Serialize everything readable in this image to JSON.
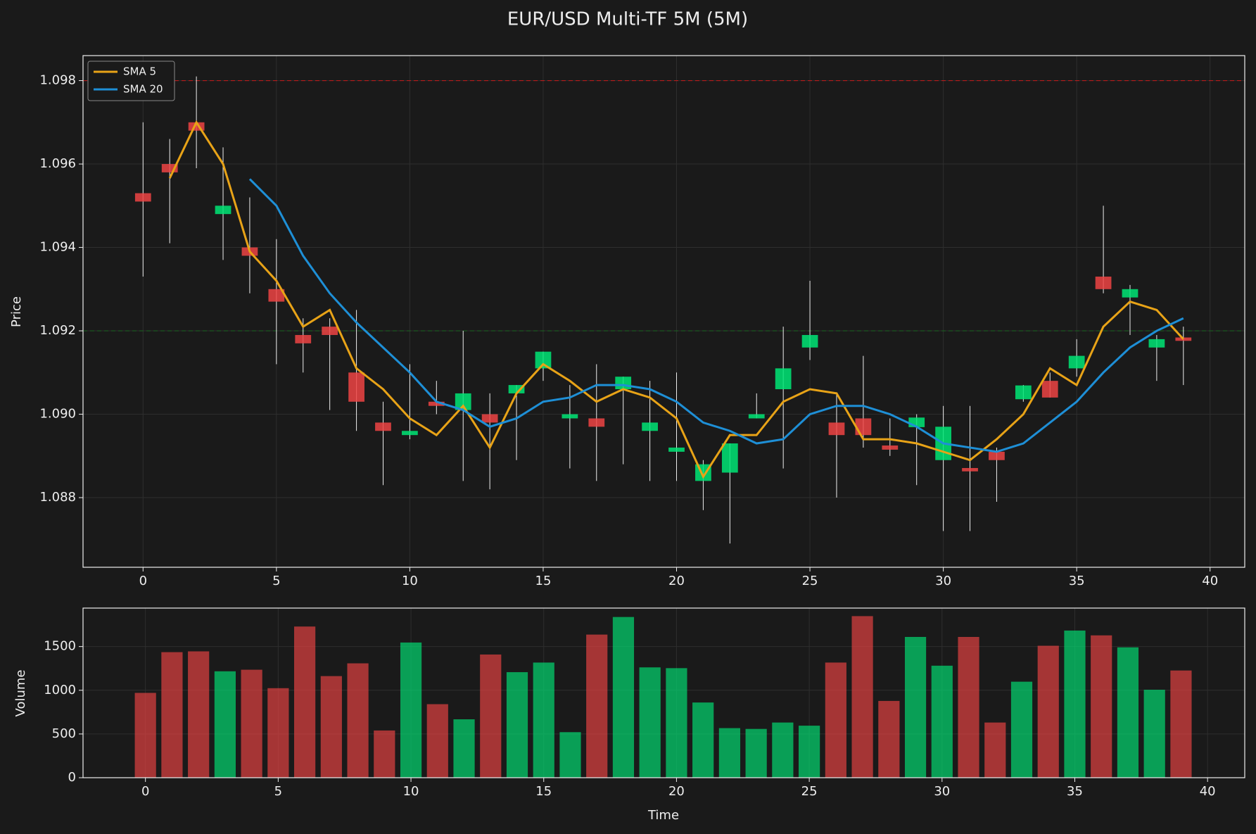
{
  "chart_data": [
    {
      "type": "candlestick",
      "title": "EUR/USD Multi-TF 5M (5M)",
      "ylabel": "Price",
      "x": [
        0,
        1,
        2,
        3,
        4,
        5,
        6,
        7,
        8,
        9,
        10,
        11,
        12,
        13,
        14,
        15,
        16,
        17,
        18,
        19,
        20,
        21,
        22,
        23,
        24,
        25,
        26,
        27,
        28,
        29,
        30,
        31,
        32,
        33,
        34,
        35,
        36,
        37,
        38,
        39
      ],
      "open": [
        1.0953,
        1.096,
        1.097,
        1.0948,
        1.094,
        1.093,
        1.0919,
        1.0921,
        1.091,
        1.0898,
        1.0895,
        1.0903,
        1.0901,
        1.09,
        1.0905,
        1.0911,
        1.0899,
        1.0899,
        1.0906,
        1.0896,
        1.0891,
        1.0884,
        1.0886,
        1.0899,
        1.0906,
        1.0916,
        1.0898,
        1.0899,
        1.08925,
        1.08969,
        1.0889,
        1.08871,
        1.0891,
        1.09036,
        1.0908,
        1.0911,
        1.0933,
        1.0928,
        1.0916,
        1.09184
      ],
      "high": [
        1.097,
        1.0966,
        1.0981,
        1.0964,
        1.0952,
        1.0942,
        1.0923,
        1.0923,
        1.0925,
        1.0903,
        1.0912,
        1.0908,
        1.092,
        1.0905,
        1.0907,
        1.0915,
        1.0907,
        1.0912,
        1.0909,
        1.0908,
        1.091,
        1.0889,
        1.0893,
        1.0905,
        1.0921,
        1.0932,
        1.0905,
        1.0914,
        1.0899,
        1.09,
        1.0902,
        1.0902,
        1.0892,
        1.0907,
        1.091,
        1.0918,
        1.095,
        1.0931,
        1.0919,
        1.0921
      ],
      "low": [
        1.0933,
        1.0941,
        1.0959,
        1.0937,
        1.0929,
        1.0912,
        1.091,
        1.0901,
        1.0896,
        1.0883,
        1.0894,
        1.09,
        1.0884,
        1.0882,
        1.0889,
        1.0908,
        1.0887,
        1.0884,
        1.0888,
        1.0884,
        1.0884,
        1.0877,
        1.0869,
        1.0899,
        1.0887,
        1.0913,
        1.088,
        1.0892,
        1.089,
        1.0883,
        1.0872,
        1.0872,
        1.0879,
        1.0903,
        1.0904,
        1.0909,
        1.0929,
        1.0919,
        1.0908,
        1.0907
      ],
      "close": [
        1.0951,
        1.0958,
        1.0968,
        1.095,
        1.0938,
        1.0927,
        1.0917,
        1.0919,
        1.0903,
        1.0896,
        1.0896,
        1.0902,
        1.0905,
        1.0898,
        1.0907,
        1.0915,
        1.09,
        1.0897,
        1.0909,
        1.0898,
        1.0892,
        1.0888,
        1.0893,
        1.09,
        1.0911,
        1.0919,
        1.0895,
        1.0895,
        1.08915,
        1.08992,
        1.0897,
        1.08863,
        1.0889,
        1.09069,
        1.0904,
        1.0914,
        1.093,
        1.093,
        1.0918,
        1.09176
      ],
      "up_color": "#00e676",
      "down_color": "#ef4444",
      "series": [
        {
          "name": "SMA 5",
          "color": "#e8a317",
          "values": [
            null,
            1.09566,
            1.097,
            1.096,
            1.0939,
            1.0932,
            1.0921,
            1.0925,
            1.0911,
            1.0906,
            1.0899,
            1.0895,
            1.0902,
            1.0892,
            1.0905,
            1.0912,
            1.0908,
            1.0903,
            1.0906,
            1.0904,
            1.0899,
            1.0885,
            1.0895,
            1.0895,
            1.0903,
            1.0906,
            1.0905,
            1.0894,
            1.0894,
            1.0893,
            1.0891,
            1.0889,
            1.0894,
            1.09,
            1.0911,
            1.0907,
            1.0921,
            1.0927,
            1.0925,
            1.0918
          ]
        },
        {
          "name": "SMA 20",
          "color": "#1e8fd6",
          "values": [
            null,
            null,
            null,
            null,
            1.09564,
            1.095,
            1.0938,
            1.0929,
            1.0922,
            1.0916,
            1.091,
            1.0903,
            1.0901,
            1.0897,
            1.0899,
            1.0903,
            1.0904,
            1.0907,
            1.0907,
            1.0906,
            1.0903,
            1.0898,
            1.0896,
            1.0893,
            1.0894,
            1.09,
            1.0902,
            1.0902,
            1.09,
            1.0897,
            1.0893,
            1.0892,
            1.0891,
            1.0893,
            1.0898,
            1.0903,
            1.091,
            1.0916,
            1.092,
            1.0923
          ]
        }
      ],
      "hlines": [
        {
          "value": 1.098,
          "color": "#b71c1c"
        },
        {
          "value": 1.092,
          "color": "#1b5e20"
        }
      ],
      "xlim": [
        -2.25,
        41.3
      ],
      "ylim": [
        1.08633,
        1.0986
      ],
      "xticks": [
        0,
        5,
        10,
        15,
        20,
        25,
        30,
        35,
        40
      ],
      "yticks": [
        1.088,
        {
          "value": 1.09,
          "label": "1.090"
        },
        1.092,
        1.094,
        1.096,
        1.098
      ],
      "grid": true,
      "legend": "upper-left"
    },
    {
      "type": "bar",
      "xlabel": "Time",
      "ylabel": "Volume",
      "x": [
        0,
        1,
        2,
        3,
        4,
        5,
        6,
        7,
        8,
        9,
        10,
        11,
        12,
        13,
        14,
        15,
        16,
        17,
        18,
        19,
        20,
        21,
        22,
        23,
        24,
        25,
        26,
        27,
        28,
        29,
        30,
        31,
        32,
        33,
        34,
        35,
        36,
        37,
        38,
        39
      ],
      "values": [
        970,
        1436,
        1445,
        1217,
        1235,
        1024,
        1729,
        1162,
        1308,
        540,
        1546,
        841,
        668,
        1409,
        1207,
        1317,
        521,
        1637,
        1838,
        1262,
        1253,
        860,
        567,
        558,
        631,
        595,
        1317,
        1848,
        878,
        1610,
        1281,
        1610,
        631,
        1098,
        1509,
        1683,
        1628,
        1491,
        1006,
        1226
      ],
      "xlim": [
        -2.35,
        41.4
      ],
      "ylim": [
        0,
        1940
      ],
      "xticks": [
        0,
        5,
        10,
        15,
        20,
        25,
        30,
        35,
        40
      ],
      "yticks": [
        0,
        500,
        1000,
        1500
      ],
      "grid": true
    }
  ]
}
